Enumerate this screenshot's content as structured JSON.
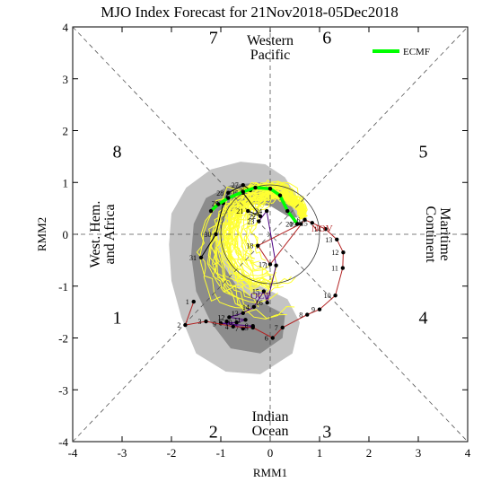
{
  "chart_data": {
    "type": "scatter",
    "title": "MJO Index Forecast for 21Nov2018-05Dec2018",
    "xlabel": "RMM1",
    "ylabel": "RMM2",
    "xlim": [
      -4,
      4
    ],
    "ylim": [
      -4,
      4
    ],
    "x_ticks": [
      "-4",
      "-3",
      "-2",
      "-1",
      "0",
      "1",
      "2",
      "3",
      "4"
    ],
    "y_ticks": [
      "-4",
      "-3",
      "-2",
      "-1",
      "0",
      "1",
      "2",
      "3",
      "4"
    ],
    "legend": {
      "position": "top-right",
      "entries": [
        {
          "label": "ECMF",
          "color": "#00ff00"
        }
      ]
    },
    "phase_numbers": [
      {
        "label": "1",
        "x": -3.1,
        "y": -1.6
      },
      {
        "label": "2",
        "x": -1.15,
        "y": -3.8
      },
      {
        "label": "3",
        "x": 1.15,
        "y": -3.8
      },
      {
        "label": "4",
        "x": 3.1,
        "y": -1.6
      },
      {
        "label": "5",
        "x": 3.1,
        "y": 1.6
      },
      {
        "label": "6",
        "x": 1.15,
        "y": 3.8
      },
      {
        "label": "7",
        "x": -1.15,
        "y": 3.8
      },
      {
        "label": "8",
        "x": -3.1,
        "y": 1.6
      }
    ],
    "region_labels": [
      {
        "lines": [
          "Western",
          "Pacific"
        ],
        "x": 0.0,
        "y": 3.6,
        "rotate": 0
      },
      {
        "lines": [
          "Indian",
          "Ocean"
        ],
        "x": 0.0,
        "y": -3.65,
        "rotate": 0
      },
      {
        "lines": [
          "West. Hem.",
          "and Africa"
        ],
        "x": -3.4,
        "y": 0.0,
        "rotate": -90
      },
      {
        "lines": [
          "Maritime",
          "Continent"
        ],
        "x": 3.4,
        "y": 0.0,
        "rotate": 90
      }
    ],
    "month_labels": [
      {
        "label": "OCT",
        "x": -0.2,
        "y": -1.25,
        "color": "#4b0082"
      },
      {
        "label": "NOV",
        "x": 1.05,
        "y": 0.05,
        "color": "#b22222"
      }
    ],
    "observed_oct": {
      "color": "#4b0082",
      "points": [
        {
          "day": "23",
          "x": -0.23,
          "y": 0.25
        },
        {
          "day": "24",
          "x": -0.07,
          "y": 0.45
        },
        {
          "day": "17",
          "x": 0.12,
          "y": -0.6
        },
        {
          "day": "16",
          "x": -0.06,
          "y": -1.32
        },
        {
          "day": "15",
          "x": -0.13,
          "y": -1.1
        },
        {
          "day": "14",
          "x": -0.33,
          "y": -1.4
        },
        {
          "day": "13",
          "x": -0.55,
          "y": -1.52
        },
        {
          "day": "12",
          "x": -0.83,
          "y": -1.6
        },
        {
          "day": "11",
          "x": -0.5,
          "y": -1.65
        },
        {
          "day": "10",
          "x": -0.68,
          "y": -1.7
        },
        {
          "day": "9",
          "x": -1.0,
          "y": -1.72
        },
        {
          "day": "8",
          "x": -0.35,
          "y": -1.77
        },
        {
          "day": "7",
          "x": -0.55,
          "y": -1.82
        },
        {
          "day": "6",
          "x": -0.88,
          "y": -1.68
        }
      ]
    },
    "observed_nov": {
      "color": "#b22222",
      "points": [
        {
          "day": "1",
          "x": -1.55,
          "y": -1.3
        },
        {
          "day": "2",
          "x": -1.72,
          "y": -1.75
        },
        {
          "day": "3",
          "x": -1.3,
          "y": -1.68
        },
        {
          "day": "4",
          "x": -0.75,
          "y": -1.78
        },
        {
          "day": "5",
          "x": -0.35,
          "y": -1.8
        },
        {
          "day": "6",
          "x": 0.05,
          "y": -2.0
        },
        {
          "day": "7",
          "x": 0.25,
          "y": -1.8
        },
        {
          "day": "8",
          "x": 0.75,
          "y": -1.55
        },
        {
          "day": "9",
          "x": 1.0,
          "y": -1.45
        },
        {
          "day": "10",
          "x": 1.32,
          "y": -1.18
        },
        {
          "day": "11",
          "x": 1.47,
          "y": -0.65
        },
        {
          "day": "12",
          "x": 1.48,
          "y": -0.35
        },
        {
          "day": "13",
          "x": 1.35,
          "y": -0.1
        },
        {
          "day": "14",
          "x": 1.12,
          "y": 0.1
        },
        {
          "day": "15",
          "x": 0.85,
          "y": 0.22
        },
        {
          "day": "16",
          "x": 0.7,
          "y": 0.28
        },
        {
          "day": "17",
          "x": 0.0,
          "y": -0.58
        },
        {
          "day": "18",
          "x": -0.25,
          "y": -0.22
        },
        {
          "day": "19",
          "x": 0.62,
          "y": 0.2
        },
        {
          "day": "20",
          "x": 0.55,
          "y": 0.2
        }
      ]
    },
    "observed_dec_or_late": [
      {
        "day": "21",
        "x": -0.45,
        "y": 0.45
      },
      {
        "day": "22",
        "x": -0.2,
        "y": 0.35
      },
      {
        "day": "25",
        "x": -0.55,
        "y": 0.8
      },
      {
        "day": "26",
        "x": -0.4,
        "y": 0.85
      },
      {
        "day": "27",
        "x": -0.55,
        "y": 0.95
      },
      {
        "day": "28",
        "x": -0.85,
        "y": 0.8
      },
      {
        "day": "29",
        "x": -0.95,
        "y": 0.6
      },
      {
        "day": "30",
        "x": -1.1,
        "y": 0.0
      },
      {
        "day": "31",
        "x": -1.4,
        "y": -0.45
      }
    ],
    "ecmf_ensemble_mean": {
      "name": "ECMF",
      "color": "#00ff00",
      "points": [
        {
          "x": 0.55,
          "y": 0.2
        },
        {
          "x": 0.35,
          "y": 0.45
        },
        {
          "x": 0.2,
          "y": 0.75
        },
        {
          "x": 0.0,
          "y": 0.88
        },
        {
          "x": -0.3,
          "y": 0.9
        },
        {
          "x": -0.55,
          "y": 0.82
        },
        {
          "x": -0.85,
          "y": 0.7
        },
        {
          "x": -1.05,
          "y": 0.58
        },
        {
          "x": -1.2,
          "y": 0.45
        }
      ]
    }
  }
}
